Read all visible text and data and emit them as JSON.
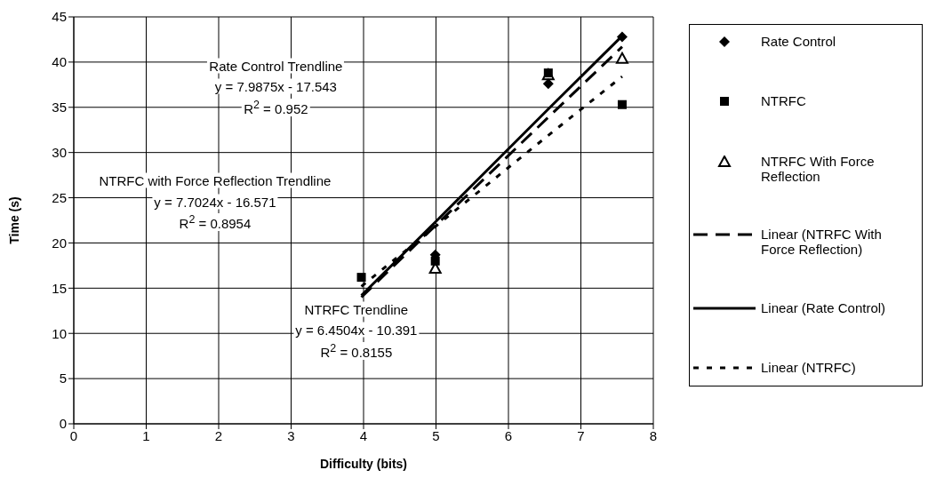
{
  "chart_data": {
    "type": "scatter",
    "xlabel": "Difficulty (bits)",
    "ylabel": "Time (s)",
    "xlim": [
      0,
      8
    ],
    "xticks": [
      0,
      1,
      2,
      3,
      4,
      5,
      6,
      7,
      8
    ],
    "ylim": [
      0,
      45
    ],
    "yticks": [
      0,
      5,
      10,
      15,
      20,
      25,
      30,
      35,
      40,
      45
    ],
    "grid": true,
    "legend": "right",
    "x": [
      3.97,
      4.99,
      6.55,
      7.57
    ],
    "series": [
      {
        "name": "Rate Control",
        "color": "#000000",
        "marker": "diamond",
        "values": [
          null,
          18.7,
          37.6,
          42.8
        ]
      },
      {
        "name": "NTRFC",
        "color": "#000000",
        "marker": "square",
        "values": [
          16.2,
          18.0,
          38.8,
          35.3
        ]
      },
      {
        "name": "NTRFC With Force Reflection",
        "color": "#000000",
        "marker": "triangle",
        "values": [
          null,
          17.2,
          38.6,
          40.4
        ]
      },
      {
        "name": "Linear (NTRFC With Force Reflection)",
        "type": "line",
        "color": "#000000",
        "marker": "none",
        "line_style": "dashed",
        "values": [
          14.0,
          21.9,
          33.9,
          41.7
        ]
      },
      {
        "name": "Linear (Rate Control)",
        "type": "line",
        "color": "#000000",
        "marker": "none",
        "line_style": "solid",
        "values": [
          14.2,
          22.3,
          34.8,
          42.9
        ]
      },
      {
        "name": "Linear (NTRFC)",
        "type": "line",
        "color": "#000000",
        "marker": "none",
        "line_style": "dotted",
        "values": [
          15.2,
          21.8,
          31.9,
          38.4
        ]
      }
    ],
    "annotations": [
      "Rate Control Trendline",
      "y = 7.9875x - 17.543",
      "R$^{2}$ = 0.952",
      "NTRFC with Force Reflection Trendline",
      "y = 7.7024x - 16.571",
      "R$^{2}$ = 0.8954",
      "NTRFC Trendline",
      "y = 6.4504x - 10.391",
      "R$^{2}$ = 0.8155"
    ]
  }
}
